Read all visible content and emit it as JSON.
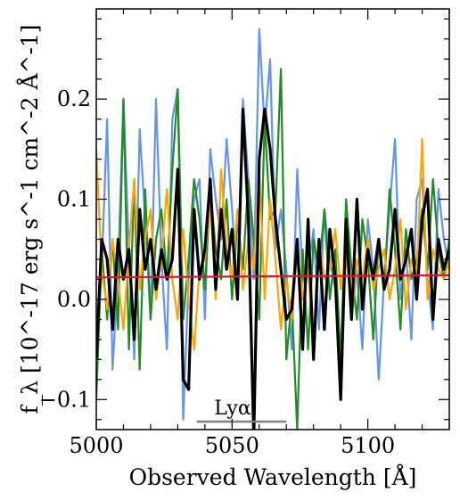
{
  "chart_data": {
    "type": "line",
    "title": "",
    "xlabel": "Observed Wavelength [Å]",
    "ylabel": "f_λ [10^-17 erg s^-1 cm^-2 Å^-1]",
    "xlim": [
      5000,
      5130
    ],
    "ylim": [
      -0.13,
      0.29
    ],
    "xticks": [
      5000,
      5050,
      5100
    ],
    "xtick_labels": [
      "5000",
      "5050",
      "5100"
    ],
    "yticks": [
      -0.1,
      0.0,
      0.1,
      0.2
    ],
    "ytick_labels": [
      "−0.1",
      "0.0",
      "0.1",
      "0.2"
    ],
    "grid": false,
    "legend": "none",
    "annotation": {
      "text": "Lyα",
      "x_start": 5037,
      "x_end": 5070,
      "y": -0.122
    },
    "series": [
      {
        "color": "#6495ED",
        "x": [
          5000,
          5002,
          5004,
          5006,
          5008,
          5010,
          5012,
          5014,
          5016,
          5018,
          5020,
          5022,
          5024,
          5026,
          5028,
          5030,
          5032,
          5034,
          5036,
          5038,
          5040,
          5042,
          5044,
          5046,
          5048,
          5050,
          5052,
          5054,
          5056,
          5058,
          5060,
          5062,
          5064,
          5066,
          5068,
          5070,
          5072,
          5074,
          5076,
          5078,
          5080,
          5082,
          5084,
          5086,
          5088,
          5090,
          5092,
          5094,
          5096,
          5098,
          5100,
          5102,
          5104,
          5106,
          5108,
          5110,
          5112,
          5114,
          5116,
          5118,
          5120,
          5122,
          5124,
          5126,
          5128,
          5130
        ],
        "y": [
          -0.06,
          0.03,
          0.18,
          -0.07,
          0.03,
          0.2,
          0.05,
          -0.06,
          0.17,
          0.08,
          -0.02,
          0.2,
          0.04,
          -0.05,
          0.18,
          0.21,
          -0.12,
          0.02,
          0.1,
          0.12,
          -0.02,
          0.15,
          0.1,
          0.06,
          0.16,
          0.09,
          0.01,
          0.2,
          0.12,
          0.02,
          0.27,
          0.17,
          0.24,
          0.05,
          0.09,
          0.03,
          -0.05,
          0.13,
          0.02,
          0.03,
          0.07,
          -0.03,
          0.09,
          0.04,
          0.01,
          -0.08,
          0.07,
          -0.02,
          0.03,
          -0.05,
          0.08,
          0.03,
          -0.08,
          0.02,
          0.09,
          0.16,
          0.0,
          0.05,
          -0.04,
          0.1,
          0.12,
          0.02,
          -0.03,
          0.11,
          0.06,
          0.03
        ]
      },
      {
        "color": "#228B22",
        "x": [
          5000,
          5002,
          5004,
          5006,
          5008,
          5010,
          5012,
          5014,
          5016,
          5018,
          5020,
          5022,
          5024,
          5026,
          5028,
          5030,
          5032,
          5034,
          5036,
          5038,
          5040,
          5042,
          5044,
          5046,
          5048,
          5050,
          5052,
          5054,
          5056,
          5058,
          5060,
          5062,
          5064,
          5066,
          5068,
          5070,
          5072,
          5074,
          5076,
          5078,
          5080,
          5082,
          5084,
          5086,
          5088,
          5090,
          5092,
          5094,
          5096,
          5098,
          5100,
          5102,
          5104,
          5106,
          5108,
          5110,
          5112,
          5114,
          5116,
          5118,
          5120,
          5122,
          5124,
          5126,
          5128,
          5130
        ],
        "y": [
          -0.1,
          0.05,
          -0.02,
          0.06,
          -0.03,
          0.2,
          -0.05,
          0.12,
          -0.07,
          0.11,
          -0.02,
          0.06,
          0.09,
          0.02,
          0.13,
          0.21,
          -0.02,
          0.04,
          0.12,
          0.08,
          0.01,
          0.11,
          0.05,
          0.02,
          0.1,
          0.0,
          0.08,
          0.03,
          0.12,
          0.06,
          -0.02,
          0.18,
          0.08,
          0.09,
          0.23,
          -0.06,
          0.0,
          -0.13,
          0.05,
          -0.05,
          0.06,
          0.03,
          0.09,
          0.0,
          0.05,
          -0.06,
          0.1,
          0.03,
          -0.02,
          0.08,
          0.04,
          -0.04,
          0.06,
          0.01,
          0.11,
          0.05,
          -0.03,
          0.07,
          0.02,
          0.04,
          0.09,
          0.03,
          0.12,
          0.05,
          0.02,
          0.06
        ]
      },
      {
        "color": "#FFA500",
        "x": [
          5000,
          5002,
          5004,
          5006,
          5008,
          5010,
          5012,
          5014,
          5016,
          5018,
          5020,
          5022,
          5024,
          5026,
          5028,
          5030,
          5032,
          5034,
          5036,
          5038,
          5040,
          5042,
          5044,
          5046,
          5048,
          5050,
          5052,
          5054,
          5056,
          5058,
          5060,
          5062,
          5064,
          5066,
          5068,
          5070,
          5072,
          5074,
          5076,
          5078,
          5080,
          5082,
          5084,
          5086,
          5088,
          5090,
          5092,
          5094,
          5096,
          5098,
          5100,
          5102,
          5104,
          5106,
          5108,
          5110,
          5112,
          5114,
          5116,
          5118,
          5120,
          5122,
          5124,
          5126,
          5128,
          5130
        ],
        "y": [
          0.15,
          0.03,
          -0.01,
          0.06,
          0.02,
          -0.03,
          0.05,
          0.12,
          0.01,
          0.06,
          0.09,
          0.0,
          0.04,
          0.11,
          0.02,
          -0.02,
          0.07,
          0.0,
          -0.05,
          0.03,
          0.04,
          0.1,
          0.0,
          0.13,
          0.05,
          0.02,
          0.09,
          0.01,
          0.06,
          0.03,
          0.13,
          0.0,
          0.1,
          0.04,
          -0.03,
          0.02,
          -0.02,
          0.05,
          0.0,
          0.03,
          -0.04,
          0.06,
          0.02,
          0.03,
          0.07,
          0.01,
          0.05,
          -0.02,
          0.04,
          0.02,
          0.06,
          0.01,
          0.03,
          0.05,
          0.0,
          0.03,
          0.08,
          -0.01,
          0.04,
          0.02,
          0.16,
          0.0,
          0.05,
          0.03,
          0.02,
          0.04
        ]
      },
      {
        "color": "#000000",
        "x": [
          5000,
          5002,
          5004,
          5006,
          5008,
          5010,
          5012,
          5014,
          5016,
          5018,
          5020,
          5022,
          5024,
          5026,
          5028,
          5030,
          5032,
          5034,
          5036,
          5038,
          5040,
          5042,
          5044,
          5046,
          5048,
          5050,
          5052,
          5054,
          5056,
          5058,
          5060,
          5062,
          5064,
          5066,
          5068,
          5070,
          5072,
          5074,
          5076,
          5078,
          5080,
          5082,
          5084,
          5086,
          5088,
          5090,
          5092,
          5094,
          5096,
          5098,
          5100,
          5102,
          5104,
          5106,
          5108,
          5110,
          5112,
          5114,
          5116,
          5118,
          5120,
          5122,
          5124,
          5126,
          5128,
          5130
        ],
        "y": [
          -0.06,
          0.06,
          0.04,
          -0.03,
          0.06,
          0.02,
          0.05,
          -0.04,
          0.09,
          0.03,
          0.06,
          0.01,
          0.05,
          0.02,
          0.04,
          0.13,
          -0.08,
          -0.09,
          0.09,
          0.02,
          0.05,
          0.12,
          0.01,
          0.09,
          0.03,
          0.07,
          0.0,
          0.19,
          0.08,
          -0.14,
          0.14,
          0.19,
          0.15,
          0.08,
          0.03,
          -0.02,
          -0.01,
          0.06,
          -0.05,
          0.08,
          -0.06,
          0.06,
          -0.03,
          0.07,
          0.02,
          -0.1,
          0.08,
          -0.02,
          0.1,
          -0.01,
          0.05,
          0.02,
          0.06,
          0.01,
          0.03,
          0.09,
          0.02,
          0.04,
          0.07,
          0.0,
          0.08,
          0.11,
          -0.02,
          0.06,
          0.03,
          0.05
        ]
      },
      {
        "color": "#DC143C",
        "x": [
          5000,
          5130
        ],
        "y": [
          0.022,
          0.024
        ]
      }
    ]
  }
}
